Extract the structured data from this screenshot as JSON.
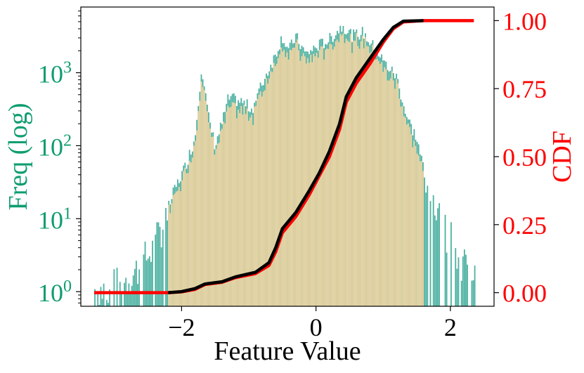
{
  "chart_data": {
    "type": "bar",
    "xlabel": "Feature Value",
    "ylabel_left": "Freq (log)",
    "ylabel_right": "CDF",
    "xlim": [
      -3.5,
      2.65
    ],
    "xticks": [
      -2,
      0,
      2
    ],
    "xtick_labels": [
      "−2",
      "0",
      "2"
    ],
    "yscale_left": "log",
    "ylim_left_log10": [
      -0.2,
      3.9
    ],
    "yticks_left": [
      {
        "exp": 0,
        "base": "10",
        "sup": "0"
      },
      {
        "exp": 1,
        "base": "10",
        "sup": "1"
      },
      {
        "exp": 2,
        "base": "10",
        "sup": "2"
      },
      {
        "exp": 3,
        "base": "10",
        "sup": "3"
      }
    ],
    "ylim_right": [
      -0.05,
      1.05
    ],
    "yticks_right": [
      0,
      0.25,
      0.5,
      0.75,
      1.0
    ],
    "ytick_labels_right": [
      "0.00",
      "0.25",
      "0.50",
      "0.75",
      "1.00"
    ],
    "grid": false,
    "colors": {
      "hist_a": "#1f9e89",
      "hist_b": "#f0d29c",
      "cdf_a": "#ff0000",
      "cdf_b": "#000000",
      "left_axis": "#0f9d70",
      "right_axis": "#ff0000"
    },
    "hist_a_log_profile": [
      [
        -3.3,
        0.0
      ],
      [
        -3.0,
        0.05
      ],
      [
        -2.7,
        0.25
      ],
      [
        -2.4,
        0.6
      ],
      [
        -2.1,
        1.4
      ],
      [
        -1.95,
        1.7
      ],
      [
        -1.8,
        2.1
      ],
      [
        -1.7,
        3.1
      ],
      [
        -1.6,
        2.4
      ],
      [
        -1.5,
        2.0
      ],
      [
        -1.4,
        2.3
      ],
      [
        -1.3,
        2.65
      ],
      [
        -1.1,
        2.6
      ],
      [
        -0.95,
        2.5
      ],
      [
        -0.8,
        2.85
      ],
      [
        -0.6,
        3.25
      ],
      [
        -0.5,
        3.5
      ],
      [
        -0.4,
        3.3
      ],
      [
        -0.3,
        3.5
      ],
      [
        -0.15,
        3.25
      ],
      [
        0.0,
        3.35
      ],
      [
        0.2,
        3.45
      ],
      [
        0.4,
        3.65
      ],
      [
        0.55,
        3.5
      ],
      [
        0.7,
        3.55
      ],
      [
        0.9,
        3.3
      ],
      [
        1.05,
        3.1
      ],
      [
        1.2,
        2.95
      ],
      [
        1.35,
        2.4
      ],
      [
        1.5,
        2.1
      ],
      [
        1.6,
        1.7
      ],
      [
        1.8,
        1.1
      ],
      [
        2.0,
        0.7
      ],
      [
        2.2,
        0.35
      ],
      [
        2.35,
        0.1
      ]
    ],
    "hist_b_range": [
      -2.2,
      1.6
    ],
    "cdf_a": [
      [
        -3.3,
        0.0
      ],
      [
        -2.2,
        0.0
      ],
      [
        -2.0,
        0.003
      ],
      [
        -1.8,
        0.012
      ],
      [
        -1.65,
        0.03
      ],
      [
        -1.4,
        0.038
      ],
      [
        -1.2,
        0.055
      ],
      [
        -0.9,
        0.07
      ],
      [
        -0.7,
        0.1
      ],
      [
        -0.6,
        0.15
      ],
      [
        -0.5,
        0.22
      ],
      [
        -0.3,
        0.28
      ],
      [
        -0.1,
        0.36
      ],
      [
        0.05,
        0.43
      ],
      [
        0.2,
        0.5
      ],
      [
        0.35,
        0.6
      ],
      [
        0.45,
        0.7
      ],
      [
        0.6,
        0.77
      ],
      [
        0.8,
        0.84
      ],
      [
        1.0,
        0.92
      ],
      [
        1.15,
        0.97
      ],
      [
        1.3,
        0.995
      ],
      [
        1.6,
        1.0
      ],
      [
        2.35,
        1.0
      ]
    ],
    "cdf_b": [
      [
        -2.2,
        0.0
      ],
      [
        -2.0,
        0.004
      ],
      [
        -1.8,
        0.015
      ],
      [
        -1.65,
        0.032
      ],
      [
        -1.4,
        0.04
      ],
      [
        -1.2,
        0.058
      ],
      [
        -0.9,
        0.075
      ],
      [
        -0.7,
        0.11
      ],
      [
        -0.6,
        0.165
      ],
      [
        -0.5,
        0.235
      ],
      [
        -0.3,
        0.295
      ],
      [
        -0.1,
        0.375
      ],
      [
        0.05,
        0.44
      ],
      [
        0.2,
        0.52
      ],
      [
        0.35,
        0.62
      ],
      [
        0.45,
        0.72
      ],
      [
        0.6,
        0.79
      ],
      [
        0.8,
        0.86
      ],
      [
        1.0,
        0.93
      ],
      [
        1.15,
        0.975
      ],
      [
        1.3,
        0.998
      ],
      [
        1.6,
        1.0
      ]
    ]
  }
}
